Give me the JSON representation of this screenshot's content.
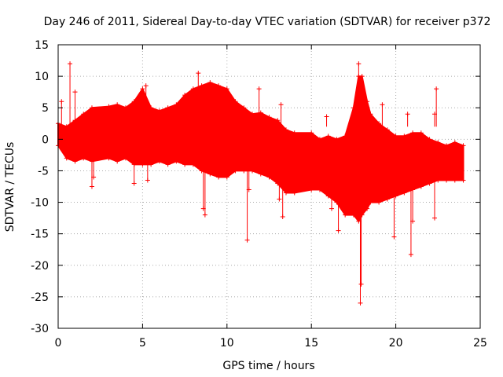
{
  "chart_data": {
    "type": "scatter",
    "title": "Day 246 of 2011, Sidereal Day-to-day VTEC variation (SDTVAR) for receiver p372",
    "xlabel": "GPS time / hours",
    "ylabel": "SDTVAR / TECUs",
    "xlim": [
      0,
      25
    ],
    "ylim": [
      -30,
      15
    ],
    "x_ticks": [
      0,
      5,
      10,
      15,
      20,
      25
    ],
    "y_ticks": [
      15,
      10,
      5,
      0,
      -5,
      -10,
      -15,
      -20,
      -25,
      -30
    ],
    "x_tick_labels": [
      "0",
      "5",
      "10",
      "15",
      "20",
      "25"
    ],
    "y_tick_labels": [
      "15",
      "10",
      "5",
      "0",
      "-5",
      "-10",
      "-15",
      "-20",
      "-25",
      "-30"
    ],
    "grid": true,
    "marker": "+",
    "color": "#ff0000",
    "upper_envelope": [
      [
        0,
        2.5
      ],
      [
        0.5,
        2
      ],
      [
        1,
        3
      ],
      [
        1.5,
        4
      ],
      [
        2,
        5
      ],
      [
        3,
        5.2
      ],
      [
        3.5,
        5.5
      ],
      [
        4,
        5
      ],
      [
        4.5,
        6
      ],
      [
        5,
        8
      ],
      [
        5.5,
        5
      ],
      [
        6,
        4.5
      ],
      [
        6.5,
        5
      ],
      [
        7,
        5.5
      ],
      [
        7.5,
        7
      ],
      [
        8,
        8
      ],
      [
        8.5,
        8.5
      ],
      [
        9,
        9
      ],
      [
        9.5,
        8.5
      ],
      [
        10,
        8
      ],
      [
        10.5,
        6
      ],
      [
        11,
        5
      ],
      [
        11.5,
        4
      ],
      [
        12,
        4.2
      ],
      [
        12.5,
        3.5
      ],
      [
        13,
        3
      ],
      [
        13.5,
        1.5
      ],
      [
        14,
        1
      ],
      [
        15,
        1
      ],
      [
        15.5,
        0
      ],
      [
        16,
        0.5
      ],
      [
        16.5,
        0
      ],
      [
        17,
        0.5
      ],
      [
        17.5,
        5
      ],
      [
        17.8,
        10
      ],
      [
        18,
        10
      ],
      [
        18.3,
        6
      ],
      [
        18.5,
        4
      ],
      [
        19,
        2.5
      ],
      [
        19.5,
        1.5
      ],
      [
        20,
        0.5
      ],
      [
        20.5,
        0.5
      ],
      [
        21,
        1
      ],
      [
        21.5,
        1
      ],
      [
        22,
        0
      ],
      [
        22.5,
        -0.5
      ],
      [
        23,
        -1
      ],
      [
        23.5,
        -0.5
      ],
      [
        24,
        -1
      ]
    ],
    "lower_envelope": [
      [
        0,
        -1
      ],
      [
        0.5,
        -3
      ],
      [
        1,
        -3.5
      ],
      [
        1.5,
        -3
      ],
      [
        2,
        -3.5
      ],
      [
        3,
        -3
      ],
      [
        3.5,
        -3.5
      ],
      [
        4,
        -3
      ],
      [
        4.5,
        -4
      ],
      [
        5,
        -4
      ],
      [
        5.5,
        -4
      ],
      [
        6,
        -3.5
      ],
      [
        6.5,
        -4
      ],
      [
        7,
        -3.5
      ],
      [
        7.5,
        -4
      ],
      [
        8,
        -4
      ],
      [
        8.5,
        -5
      ],
      [
        9,
        -5.5
      ],
      [
        9.5,
        -6
      ],
      [
        10,
        -6
      ],
      [
        10.5,
        -5
      ],
      [
        11,
        -5
      ],
      [
        11.5,
        -5
      ],
      [
        12,
        -5.5
      ],
      [
        12.5,
        -6
      ],
      [
        13,
        -7
      ],
      [
        13.5,
        -8.5
      ],
      [
        14,
        -8.5
      ],
      [
        15,
        -8
      ],
      [
        15.5,
        -8
      ],
      [
        16,
        -9
      ],
      [
        16.5,
        -10
      ],
      [
        17,
        -12
      ],
      [
        17.5,
        -12
      ],
      [
        17.8,
        -13
      ],
      [
        18,
        -12
      ],
      [
        18.3,
        -11
      ],
      [
        18.5,
        -10
      ],
      [
        19,
        -10
      ],
      [
        19.5,
        -9.5
      ],
      [
        20,
        -9
      ],
      [
        20.5,
        -8.5
      ],
      [
        21,
        -8
      ],
      [
        21.5,
        -7.5
      ],
      [
        22,
        -7
      ],
      [
        22.5,
        -6.5
      ],
      [
        23,
        -6.5
      ],
      [
        23.5,
        -6.5
      ],
      [
        24,
        -6.5
      ]
    ],
    "spikes": [
      [
        0.7,
        12
      ],
      [
        1.0,
        7.5
      ],
      [
        0.2,
        6
      ],
      [
        2,
        -7.5
      ],
      [
        2.1,
        -6
      ],
      [
        4.5,
        -7
      ],
      [
        5.2,
        8.5
      ],
      [
        5.3,
        -6.5
      ],
      [
        7.7,
        7
      ],
      [
        8.3,
        10.5
      ],
      [
        8.6,
        -11
      ],
      [
        8.7,
        -12
      ],
      [
        11.2,
        -16
      ],
      [
        11.3,
        -8
      ],
      [
        11.9,
        8
      ],
      [
        13.1,
        -9.5
      ],
      [
        13.2,
        5.5
      ],
      [
        13.3,
        -12.3
      ],
      [
        15.9,
        3.6
      ],
      [
        16.2,
        -11
      ],
      [
        16.6,
        -14.5
      ],
      [
        17.8,
        12
      ],
      [
        17.9,
        -26
      ],
      [
        17.95,
        -23
      ],
      [
        19.2,
        5.5
      ],
      [
        19.9,
        -15.5
      ],
      [
        20.7,
        4
      ],
      [
        20.9,
        -18.3
      ],
      [
        21,
        -13
      ],
      [
        22.3,
        4
      ],
      [
        22.3,
        -12.5
      ],
      [
        22.4,
        8
      ]
    ]
  }
}
